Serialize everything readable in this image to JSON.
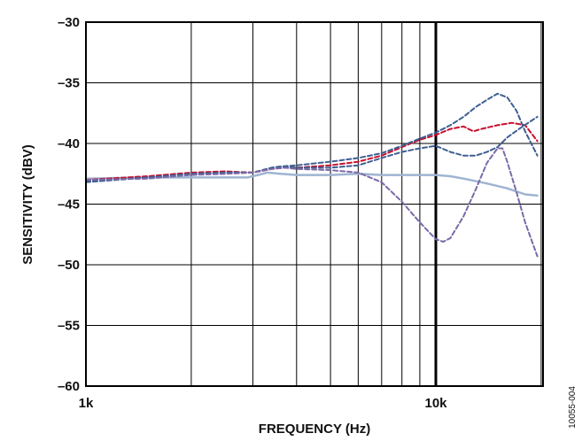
{
  "chart_data": {
    "type": "line",
    "xlabel": "FREQUENCY (Hz)",
    "ylabel": "SENSITIVITY (dBV)",
    "x_scale": "log",
    "xlim": [
      1000,
      20000
    ],
    "ylim": [
      -60,
      -30
    ],
    "grid": true,
    "x_tick_labels": [
      {
        "value": 1000,
        "label": "1k"
      },
      {
        "value": 10000,
        "label": "10k"
      }
    ],
    "y_ticks": [
      -30,
      -35,
      -40,
      -45,
      -50,
      -55,
      -60
    ],
    "y_tick_labels": [
      "–30",
      "–35",
      "–40",
      "–45",
      "–50",
      "–55",
      "–60"
    ],
    "figure_id": "10055-004",
    "series": [
      {
        "color": "#9fb4d1",
        "style": "solid",
        "points": [
          [
            1000,
            -42.9
          ],
          [
            1500,
            -42.8
          ],
          [
            2000,
            -42.8
          ],
          [
            2500,
            -42.8
          ],
          [
            2900,
            -42.8
          ],
          [
            3100,
            -42.6
          ],
          [
            3300,
            -42.4
          ],
          [
            3600,
            -42.5
          ],
          [
            4000,
            -42.6
          ],
          [
            5000,
            -42.6
          ],
          [
            6000,
            -42.5
          ],
          [
            7000,
            -42.6
          ],
          [
            8000,
            -42.6
          ],
          [
            9000,
            -42.6
          ],
          [
            10000,
            -42.6
          ],
          [
            11000,
            -42.7
          ],
          [
            12000,
            -42.9
          ],
          [
            14000,
            -43.3
          ],
          [
            16000,
            -43.7
          ],
          [
            18000,
            -44.2
          ],
          [
            19500,
            -44.3
          ]
        ]
      },
      {
        "color": "#c8102e",
        "style": "dashed",
        "points": [
          [
            1000,
            -43.0
          ],
          [
            1500,
            -42.7
          ],
          [
            2000,
            -42.4
          ],
          [
            2500,
            -42.3
          ],
          [
            3000,
            -42.4
          ],
          [
            3400,
            -42.1
          ],
          [
            3700,
            -42.0
          ],
          [
            4000,
            -42.0
          ],
          [
            5000,
            -41.8
          ],
          [
            6000,
            -41.5
          ],
          [
            7000,
            -41.0
          ],
          [
            8000,
            -40.3
          ],
          [
            9000,
            -39.7
          ],
          [
            10000,
            -39.3
          ],
          [
            11000,
            -38.8
          ],
          [
            12000,
            -38.6
          ],
          [
            12800,
            -39.0
          ],
          [
            13500,
            -38.8
          ],
          [
            15000,
            -38.5
          ],
          [
            16500,
            -38.3
          ],
          [
            18000,
            -38.5
          ],
          [
            19500,
            -39.8
          ]
        ]
      },
      {
        "color": "#3f5f93",
        "style": "dashed",
        "points": [
          [
            1000,
            -43.1
          ],
          [
            1500,
            -42.8
          ],
          [
            2000,
            -42.5
          ],
          [
            2500,
            -42.4
          ],
          [
            3000,
            -42.4
          ],
          [
            3400,
            -42.0
          ],
          [
            3600,
            -41.9
          ],
          [
            4000,
            -42.0
          ],
          [
            5000,
            -42.0
          ],
          [
            6000,
            -41.8
          ],
          [
            7000,
            -41.2
          ],
          [
            8000,
            -40.7
          ],
          [
            9000,
            -40.4
          ],
          [
            10000,
            -40.2
          ],
          [
            11000,
            -40.7
          ],
          [
            12000,
            -41.0
          ],
          [
            13000,
            -41.0
          ],
          [
            14000,
            -40.7
          ],
          [
            15000,
            -40.3
          ],
          [
            16000,
            -39.5
          ],
          [
            17500,
            -38.7
          ],
          [
            19500,
            -37.8
          ]
        ]
      },
      {
        "color": "#3f5f93",
        "style": "dashed",
        "points": [
          [
            1000,
            -43.2
          ],
          [
            1500,
            -42.8
          ],
          [
            2000,
            -42.5
          ],
          [
            2500,
            -42.4
          ],
          [
            3000,
            -42.4
          ],
          [
            3400,
            -42.0
          ],
          [
            3600,
            -41.9
          ],
          [
            4000,
            -41.8
          ],
          [
            5000,
            -41.5
          ],
          [
            6000,
            -41.2
          ],
          [
            7000,
            -40.8
          ],
          [
            8000,
            -40.2
          ],
          [
            9000,
            -39.6
          ],
          [
            10000,
            -39.1
          ],
          [
            11000,
            -38.5
          ],
          [
            12000,
            -37.8
          ],
          [
            13000,
            -37.0
          ],
          [
            14000,
            -36.4
          ],
          [
            15000,
            -35.9
          ],
          [
            16000,
            -36.2
          ],
          [
            17000,
            -37.3
          ],
          [
            18000,
            -39.0
          ],
          [
            19500,
            -41.0
          ]
        ]
      },
      {
        "color": "#7b6aa8",
        "style": "dashed",
        "points": [
          [
            1000,
            -43.0
          ],
          [
            1500,
            -42.9
          ],
          [
            2000,
            -42.6
          ],
          [
            2500,
            -42.5
          ],
          [
            3000,
            -42.4
          ],
          [
            3400,
            -42.1
          ],
          [
            3700,
            -42.0
          ],
          [
            4000,
            -42.1
          ],
          [
            5000,
            -42.2
          ],
          [
            6000,
            -42.4
          ],
          [
            7000,
            -43.2
          ],
          [
            8000,
            -44.8
          ],
          [
            9000,
            -46.5
          ],
          [
            10000,
            -47.9
          ],
          [
            10500,
            -48.1
          ],
          [
            11000,
            -47.8
          ],
          [
            12000,
            -46.0
          ],
          [
            13000,
            -43.8
          ],
          [
            14000,
            -41.6
          ],
          [
            15000,
            -40.4
          ],
          [
            15500,
            -40.4
          ],
          [
            16000,
            -41.5
          ],
          [
            17000,
            -44.0
          ],
          [
            18000,
            -46.5
          ],
          [
            19500,
            -49.3
          ]
        ]
      }
    ]
  }
}
